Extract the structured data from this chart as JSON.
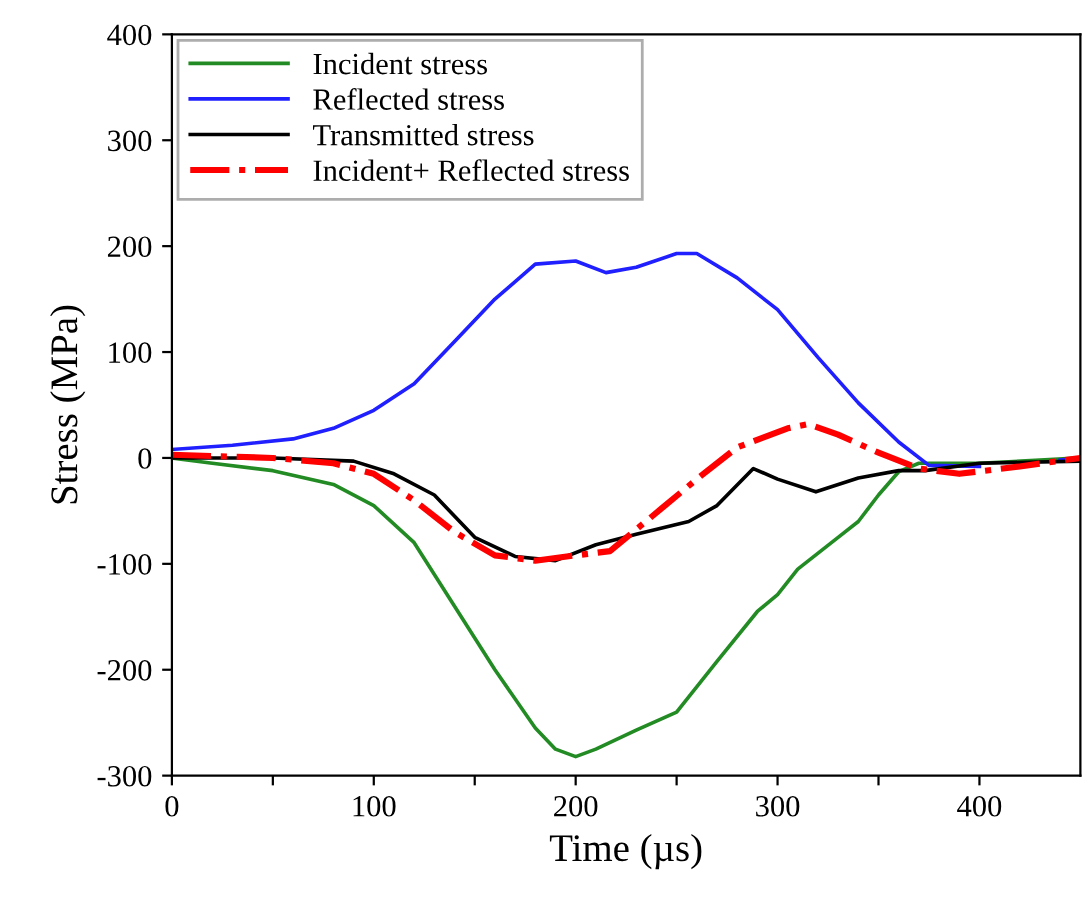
{
  "chart_data": {
    "type": "line",
    "xlabel": "Time (µs)",
    "ylabel": "Stress (MPa)",
    "xlim": [
      0,
      450
    ],
    "ylim": [
      -300,
      400
    ],
    "xticks": [
      0,
      {
        "value": 50,
        "label": null
      },
      100,
      {
        "value": 150,
        "label": null
      },
      200,
      {
        "value": 250,
        "label": null
      },
      300,
      {
        "value": 350,
        "label": null
      },
      400
    ],
    "yticks": [
      -300,
      -200,
      -100,
      0,
      100,
      200,
      300,
      400
    ],
    "grid": false,
    "legend": "top left",
    "marker": "none",
    "series": [
      {
        "name": "Incident stress",
        "color": "#238b23",
        "line_style": "solid",
        "x": [
          0,
          20,
          50,
          80,
          100,
          120,
          140,
          160,
          180,
          190,
          200,
          210,
          230,
          250,
          270,
          290,
          300,
          310,
          330,
          340,
          350,
          360,
          370,
          400,
          430,
          450
        ],
        "values": [
          0,
          -5,
          -12,
          -25,
          -45,
          -80,
          -140,
          -200,
          -255,
          -275,
          -282,
          -275,
          -257,
          -240,
          -192,
          -145,
          -129,
          -105,
          -75,
          -60,
          -35,
          -13,
          -5,
          -5,
          -2,
          0
        ]
      },
      {
        "name": "Reflected stress",
        "color": "#1f1fff",
        "line_style": "solid",
        "x": [
          0,
          30,
          60,
          80,
          100,
          120,
          140,
          160,
          180,
          200,
          215,
          230,
          250,
          260,
          280,
          300,
          320,
          340,
          360,
          375,
          400,
          420,
          440,
          450
        ],
        "values": [
          8,
          12,
          18,
          28,
          45,
          70,
          110,
          150,
          183,
          186,
          175,
          180,
          193,
          193,
          170,
          140,
          95,
          52,
          15,
          -7,
          -8,
          null,
          -2,
          0
        ]
      },
      {
        "name": "Transmitted stress",
        "color": "#000000",
        "line_style": "solid",
        "x": [
          0,
          50,
          90,
          110,
          130,
          150,
          170,
          190,
          210,
          230,
          256,
          270,
          288,
          300,
          319,
          340,
          360,
          373,
          400,
          450
        ],
        "values": [
          0,
          0,
          -3,
          -15,
          -35,
          -75,
          -93,
          -97,
          -82,
          -72,
          -60,
          -45,
          -10,
          -20,
          -32,
          -19,
          -12,
          -12,
          -5,
          -3
        ]
      },
      {
        "name": "Incident+ Reflected stress",
        "color": "#ff0000",
        "line_style": "dashdot",
        "x": [
          0,
          50,
          80,
          100,
          120,
          140,
          160,
          180,
          200,
          217,
          243,
          260,
          280,
          305,
          315,
          330,
          350,
          370,
          390,
          420,
          450
        ],
        "values": [
          3,
          0,
          -5,
          -15,
          -40,
          -70,
          -92,
          -97,
          -92,
          -88,
          -47,
          -20,
          10,
          28,
          32,
          22,
          5,
          -10,
          -15,
          -8,
          0
        ]
      }
    ]
  }
}
